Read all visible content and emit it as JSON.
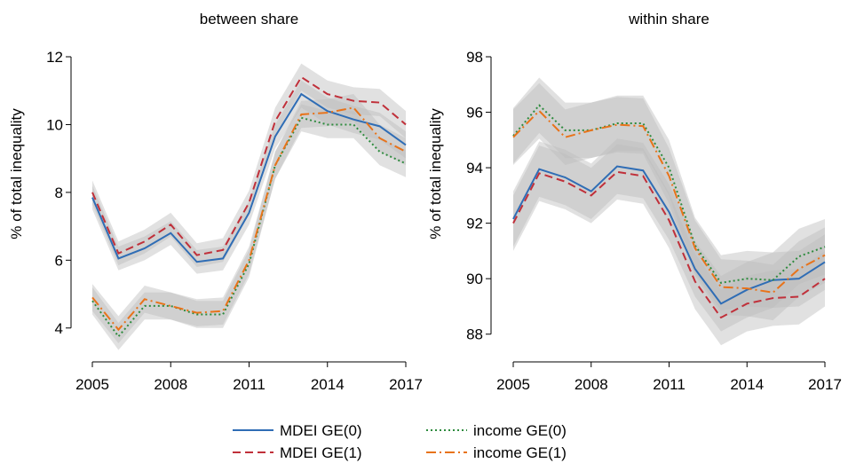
{
  "chart_data": [
    {
      "type": "line",
      "title": "between share",
      "ylabel": "% of total inequality",
      "x": [
        2005,
        2006,
        2007,
        2008,
        2009,
        2010,
        2011,
        2012,
        2013,
        2014,
        2015,
        2016,
        2017
      ],
      "xlim": [
        2005,
        2017
      ],
      "xticks": [
        2005,
        2008,
        2011,
        2014,
        2017
      ],
      "ylim": [
        3,
        12
      ],
      "yticks": [
        4,
        6,
        8,
        10,
        12
      ],
      "band_color": "#bdbdbd",
      "series": [
        {
          "name": "MDEI GE(0)",
          "color": "#2f6db5",
          "dash": "solid",
          "values": [
            7.85,
            6.05,
            6.35,
            6.8,
            5.95,
            6.05,
            7.4,
            9.65,
            10.9,
            10.4,
            10.15,
            9.95,
            9.4
          ],
          "lower": [
            7.5,
            5.7,
            6.0,
            6.45,
            5.6,
            5.7,
            7.05,
            9.3,
            10.5,
            10.0,
            9.75,
            9.55,
            9.0
          ],
          "upper": [
            8.2,
            6.4,
            6.7,
            7.15,
            6.3,
            6.4,
            7.75,
            10.0,
            11.3,
            10.8,
            10.55,
            10.35,
            9.8
          ]
        },
        {
          "name": "MDEI GE(1)",
          "color": "#c0303a",
          "dash": "dashed",
          "values": [
            8.0,
            6.2,
            6.55,
            7.05,
            6.15,
            6.3,
            7.7,
            10.1,
            11.4,
            10.9,
            10.7,
            10.65,
            10.0
          ],
          "lower": [
            7.65,
            5.85,
            6.2,
            6.7,
            5.8,
            5.95,
            7.35,
            9.7,
            11.0,
            10.5,
            10.3,
            10.25,
            9.6
          ],
          "upper": [
            8.35,
            6.55,
            6.9,
            7.4,
            6.5,
            6.65,
            8.05,
            10.5,
            11.8,
            11.3,
            11.1,
            11.05,
            10.4
          ]
        },
        {
          "name": "income GE(0)",
          "color": "#2e8b3e",
          "dash": "dotted",
          "values": [
            4.8,
            3.75,
            4.65,
            4.65,
            4.4,
            4.4,
            5.9,
            8.8,
            10.2,
            10.0,
            10.0,
            9.2,
            8.85
          ],
          "lower": [
            4.4,
            3.35,
            4.25,
            4.25,
            4.0,
            4.0,
            5.5,
            8.4,
            9.8,
            9.6,
            9.6,
            8.8,
            8.45
          ],
          "upper": [
            5.2,
            4.15,
            5.05,
            5.05,
            4.8,
            4.8,
            6.3,
            9.2,
            10.6,
            10.4,
            10.4,
            9.6,
            9.25
          ]
        },
        {
          "name": "income GE(1)",
          "color": "#e8731a",
          "dash": "dashdot",
          "values": [
            4.9,
            3.95,
            4.85,
            4.65,
            4.45,
            4.5,
            6.0,
            8.8,
            10.3,
            10.35,
            10.5,
            9.6,
            9.2
          ],
          "lower": [
            4.5,
            3.55,
            4.45,
            4.25,
            4.05,
            4.1,
            5.6,
            8.4,
            9.9,
            9.95,
            10.1,
            9.2,
            8.8
          ],
          "upper": [
            5.3,
            4.35,
            5.25,
            5.05,
            4.85,
            4.9,
            6.4,
            9.2,
            10.7,
            10.75,
            10.9,
            10.0,
            9.6
          ]
        }
      ]
    },
    {
      "type": "line",
      "title": "within share",
      "ylabel": "% of total inequality",
      "x": [
        2005,
        2006,
        2007,
        2008,
        2009,
        2010,
        2011,
        2012,
        2013,
        2014,
        2015,
        2016,
        2017
      ],
      "xlim": [
        2005,
        2017
      ],
      "xticks": [
        2005,
        2008,
        2011,
        2014,
        2017
      ],
      "ylim": [
        87,
        98
      ],
      "yticks": [
        88,
        90,
        92,
        94,
        96,
        98
      ],
      "band_color": "#bdbdbd",
      "series": [
        {
          "color": "#2f6db5",
          "dash": "solid",
          "values": [
            92.15,
            93.95,
            93.65,
            93.15,
            94.05,
            93.9,
            92.4,
            90.35,
            89.1,
            89.6,
            89.95,
            90.0,
            90.6
          ],
          "lower": [
            91.15,
            92.95,
            92.65,
            92.15,
            93.05,
            92.9,
            91.4,
            89.35,
            88.1,
            88.6,
            88.95,
            89.0,
            89.6
          ],
          "upper": [
            93.15,
            94.95,
            94.65,
            94.15,
            95.05,
            94.9,
            93.4,
            91.35,
            90.1,
            90.6,
            90.95,
            91.0,
            91.6
          ]
        },
        {
          "color": "#c0303a",
          "dash": "dashed",
          "values": [
            92.0,
            93.8,
            93.5,
            93.0,
            93.85,
            93.7,
            92.1,
            89.9,
            88.6,
            89.1,
            89.3,
            89.35,
            90.0
          ],
          "lower": [
            91.0,
            92.8,
            92.5,
            92.0,
            92.85,
            92.7,
            91.1,
            88.9,
            87.6,
            88.1,
            88.3,
            88.35,
            89.0
          ],
          "upper": [
            93.0,
            94.8,
            94.5,
            94.0,
            94.85,
            94.7,
            93.1,
            90.9,
            89.6,
            90.1,
            90.3,
            90.35,
            91.0
          ]
        },
        {
          "color": "#2e8b3e",
          "dash": "dotted",
          "values": [
            95.15,
            96.25,
            95.35,
            95.35,
            95.6,
            95.6,
            94.0,
            91.2,
            89.85,
            90.0,
            89.95,
            90.8,
            91.15
          ],
          "lower": [
            94.15,
            95.25,
            94.35,
            94.35,
            94.6,
            94.6,
            93.0,
            90.2,
            88.85,
            89.0,
            88.95,
            89.8,
            90.15
          ],
          "upper": [
            96.15,
            97.25,
            96.35,
            96.35,
            96.6,
            96.6,
            95.0,
            92.2,
            90.85,
            91.0,
            90.95,
            91.8,
            92.15
          ]
        },
        {
          "color": "#e8731a",
          "dash": "dashdot",
          "values": [
            95.1,
            96.05,
            95.1,
            95.35,
            95.55,
            95.5,
            93.7,
            91.1,
            89.7,
            89.65,
            89.5,
            90.35,
            90.85
          ],
          "lower": [
            94.1,
            95.05,
            94.1,
            94.35,
            94.55,
            94.5,
            92.7,
            90.1,
            88.7,
            88.65,
            88.5,
            89.35,
            89.85
          ],
          "upper": [
            96.1,
            97.05,
            96.1,
            96.35,
            96.55,
            96.5,
            94.7,
            92.1,
            90.7,
            90.65,
            90.5,
            91.35,
            91.85
          ]
        }
      ]
    }
  ]
}
